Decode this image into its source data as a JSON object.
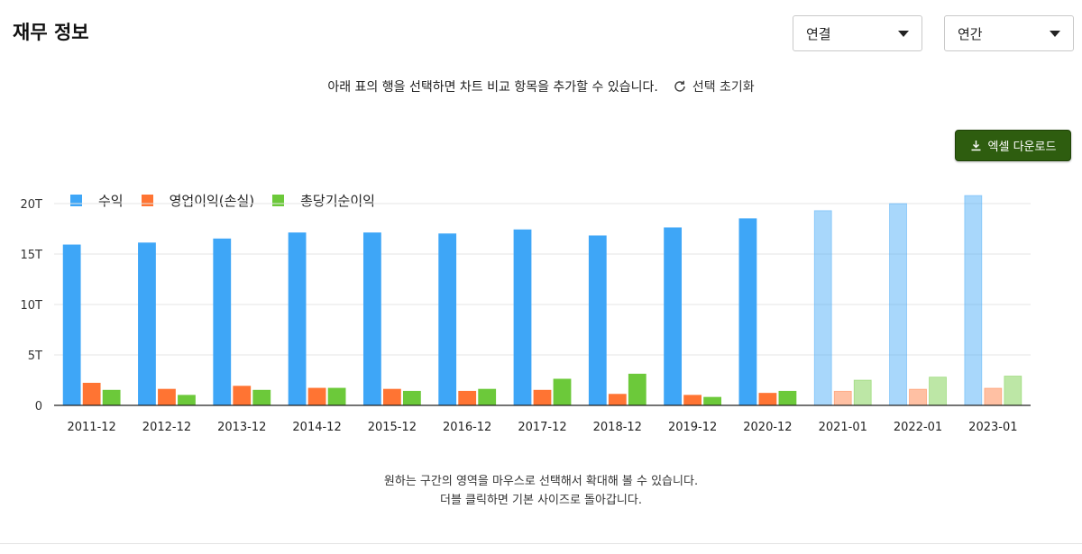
{
  "header": {
    "title": "재무 정보",
    "select_consolidation": "연결",
    "select_period": "연간"
  },
  "hint": {
    "text": "아래 표의 행을 선택하면 차트 비교 항목을 추가할 수 있습니다.",
    "reset_label": "선택 초기화"
  },
  "toolbar": {
    "excel_label": "엑셀 다운로드"
  },
  "footnote": {
    "line1": "원하는 구간의 영역을 마우스로 선택해서 확대해 볼 수 있습니다.",
    "line2": "더블 클릭하면 기본 사이즈로 돌아갑니다."
  },
  "chart_data": {
    "type": "bar",
    "title": "",
    "xlabel": "",
    "ylabel": "",
    "categories": [
      "2011-12",
      "2012-12",
      "2013-12",
      "2014-12",
      "2015-12",
      "2016-12",
      "2017-12",
      "2018-12",
      "2019-12",
      "2020-12",
      "2021-01",
      "2022-01",
      "2023-01"
    ],
    "estimate_categories": [
      "2021-01",
      "2022-01",
      "2023-01"
    ],
    "ylim": [
      0,
      20
    ],
    "yticks": [
      0,
      5,
      10,
      15,
      20
    ],
    "ytick_labels": [
      "0",
      "5T",
      "10T",
      "15T",
      "20T"
    ],
    "grid": true,
    "legend_position": "top-left",
    "series": [
      {
        "name": "수익",
        "color": "#3ea6f7",
        "values": [
          15.9,
          16.1,
          16.5,
          17.1,
          17.1,
          17.0,
          17.4,
          16.8,
          17.6,
          18.5,
          19.3,
          20.0,
          20.8
        ]
      },
      {
        "name": "영업이익(손실)",
        "color": "#ff7433",
        "values": [
          2.2,
          1.6,
          1.9,
          1.7,
          1.6,
          1.4,
          1.5,
          1.1,
          1.0,
          1.2,
          1.4,
          1.6,
          1.7
        ]
      },
      {
        "name": "총당기순이익",
        "color": "#6cc93a",
        "values": [
          1.5,
          1.0,
          1.5,
          1.7,
          1.4,
          1.6,
          2.6,
          3.1,
          0.8,
          1.4,
          2.5,
          2.8,
          2.9
        ]
      }
    ]
  }
}
